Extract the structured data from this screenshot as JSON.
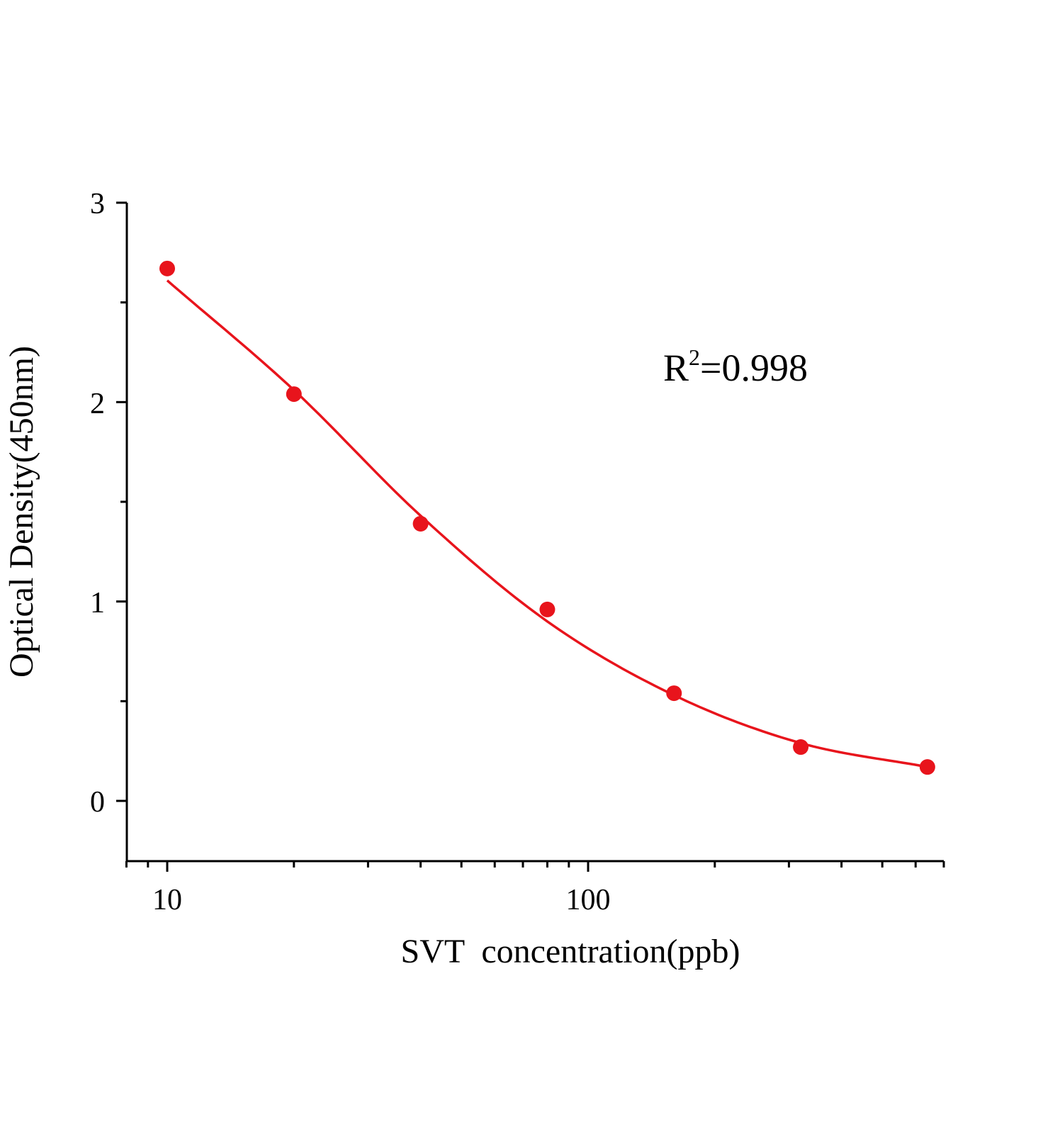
{
  "chart_data": {
    "type": "scatter",
    "title": "",
    "xlabel": "SVT  concentration(ppb)",
    "ylabel": "Optical Density(450nm)",
    "x_scale": "log",
    "xlim": [
      8,
      700
    ],
    "ylim": [
      -0.3,
      3
    ],
    "x_ticks": [
      10,
      100
    ],
    "x_tick_labels": [
      "10",
      "100"
    ],
    "y_ticks": [
      0,
      1,
      2,
      3
    ],
    "y_tick_labels": [
      "0",
      "1",
      "2",
      "3"
    ],
    "grid": false,
    "legend": "none",
    "color": "#e8141c",
    "series": [
      {
        "x": [
          10,
          20,
          40,
          80,
          160,
          320,
          640
        ],
        "y": [
          2.67,
          2.04,
          1.39,
          0.96,
          0.54,
          0.27,
          0.17
        ]
      }
    ],
    "fit_curve": {
      "x": [
        10,
        20,
        40,
        80,
        160,
        320,
        640
      ],
      "y": [
        2.61,
        2.06,
        1.43,
        0.9,
        0.53,
        0.29,
        0.17
      ]
    },
    "annotation": {
      "base": "R",
      "superscript": "2",
      "text": "=0.998"
    }
  }
}
